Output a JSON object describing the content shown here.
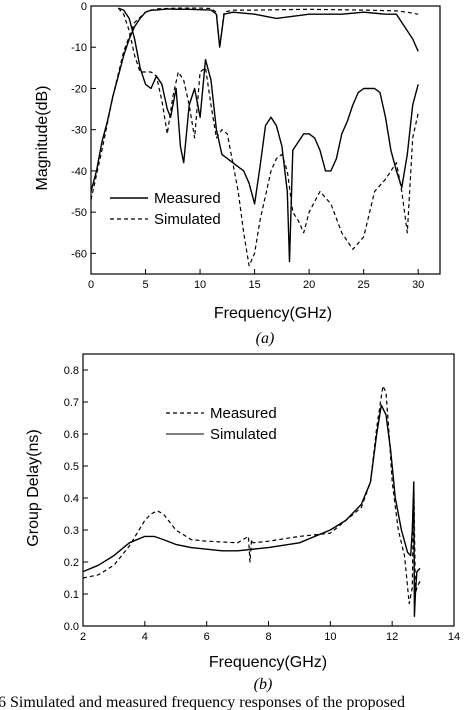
{
  "chart_data": [
    {
      "type": "line",
      "panel_label": "(a)",
      "xlabel": "Frequency(GHz)",
      "ylabel": "Magnitude(dB)",
      "xlim": [
        0,
        32
      ],
      "ylim": [
        -65,
        0
      ],
      "xticks": [
        0,
        5,
        10,
        15,
        20,
        25,
        30
      ],
      "yticks": [
        0,
        -10,
        -20,
        -30,
        -40,
        -50,
        -60
      ],
      "legend_position": "lower-left",
      "series": [
        {
          "name": "Measured",
          "style": "solid",
          "role": "S21",
          "x": [
            0,
            0.5,
            1,
            1.5,
            2,
            2.5,
            3,
            3.5,
            4,
            4.5,
            5,
            5.5,
            6,
            7,
            8,
            9,
            10,
            11,
            11.5,
            11.8,
            12.2,
            13,
            15,
            17,
            20,
            23,
            25,
            27,
            28,
            29,
            29.5,
            30
          ],
          "y": [
            -45,
            -40,
            -33,
            -28,
            -22,
            -17,
            -12,
            -8,
            -5,
            -3,
            -1.5,
            -1,
            -1,
            -0.7,
            -0.8,
            -0.8,
            -0.9,
            -1,
            -2,
            -10,
            -2,
            -1.5,
            -2,
            -3,
            -2,
            -2,
            -1.5,
            -2,
            -2,
            -6,
            -8,
            -11
          ]
        },
        {
          "name": "Measured",
          "style": "solid",
          "role": "S11",
          "x": [
            2.5,
            3,
            3.5,
            4,
            4.5,
            5,
            5.5,
            6,
            6.5,
            7,
            7.3,
            7.8,
            8.2,
            8.5,
            9,
            9.5,
            10,
            10.5,
            11,
            11.5,
            12,
            13,
            14,
            14.5,
            15,
            15.5,
            16,
            16.5,
            17,
            17.5,
            18,
            18.2,
            18.5,
            19,
            19.5,
            20,
            20.5,
            21,
            21.5,
            22,
            22.5,
            23,
            23.5,
            24,
            24.5,
            25,
            26,
            26.5,
            27,
            27.5,
            28,
            28.5,
            29,
            29.5,
            30
          ],
          "y": [
            -0.5,
            -1,
            -3,
            -8,
            -15,
            -19,
            -20,
            -17,
            -19,
            -25,
            -27,
            -20,
            -34,
            -38,
            -24,
            -20,
            -27,
            -13,
            -18,
            -30,
            -36,
            -38,
            -40,
            -43,
            -48,
            -39,
            -29,
            -27,
            -29,
            -34,
            -45,
            -62,
            -35,
            -33,
            -31,
            -31,
            -32,
            -35,
            -40,
            -40,
            -37,
            -31,
            -28,
            -24,
            -21,
            -20,
            -20,
            -21,
            -27,
            -35,
            -40,
            -44,
            -36,
            -24,
            -19
          ]
        },
        {
          "name": "Simulated",
          "style": "dashed",
          "role": "S21",
          "x": [
            0,
            1,
            2,
            3,
            4,
            5,
            6,
            8,
            10,
            11,
            11.5,
            11.8,
            12.2,
            13,
            15,
            20,
            25,
            28,
            29,
            30
          ],
          "y": [
            -47,
            -35,
            -22,
            -11,
            -4,
            -1.5,
            -0.7,
            -0.5,
            -0.5,
            -0.6,
            -1.5,
            -10,
            -1.5,
            -1,
            -1,
            -0.8,
            -1,
            -1.2,
            -1.5,
            -2
          ]
        },
        {
          "name": "Simulated",
          "style": "dashed",
          "role": "S11",
          "x": [
            2.5,
            3,
            3.5,
            4,
            4.5,
            5,
            5.5,
            6,
            6.5,
            7,
            7.5,
            8,
            8.5,
            9,
            9.5,
            10,
            10.5,
            11,
            11.5,
            12,
            12.5,
            13,
            13.5,
            14,
            14.5,
            15,
            15.5,
            16,
            16.5,
            17,
            17.5,
            18,
            18.5,
            19,
            19.5,
            20,
            21,
            22,
            23,
            24,
            25,
            26,
            27,
            28,
            28.5,
            29,
            29.5,
            30
          ],
          "y": [
            -0.5,
            -2,
            -6,
            -12,
            -16,
            -16,
            -16,
            -17,
            -23,
            -31,
            -22,
            -16,
            -18,
            -24,
            -32,
            -16,
            -15,
            -24,
            -32,
            -30,
            -31,
            -38,
            -45,
            -55,
            -63,
            -60,
            -52,
            -46,
            -40,
            -37,
            -36,
            -40,
            -50,
            -52,
            -55,
            -50,
            -45,
            -48,
            -55,
            -59,
            -56,
            -45,
            -42,
            -38,
            -45,
            -55,
            -32,
            -26
          ]
        }
      ]
    },
    {
      "type": "line",
      "panel_label": "(b)",
      "xlabel": "Frequency(GHz)",
      "ylabel": "Group Delay(ns)",
      "xlim": [
        2,
        14
      ],
      "ylim": [
        0,
        0.85
      ],
      "xticks": [
        2,
        4,
        6,
        8,
        10,
        12,
        14
      ],
      "yticks": [
        0.0,
        0.1,
        0.2,
        0.3,
        0.4,
        0.5,
        0.6,
        0.7,
        0.8
      ],
      "legend_position": "top-left",
      "series": [
        {
          "name": "Measured",
          "style": "dashed",
          "x": [
            2,
            2.5,
            3,
            3.5,
            4,
            4.2,
            4.4,
            4.6,
            5,
            5.5,
            6,
            7,
            7.35,
            7.4,
            7.45,
            7.5,
            8,
            9,
            10,
            10.5,
            11,
            11.3,
            11.5,
            11.7,
            11.8,
            11.9,
            12,
            12.2,
            12.4,
            12.55,
            12.65,
            12.7,
            12.75,
            12.8,
            12.9
          ],
          "y": [
            0.15,
            0.16,
            0.19,
            0.25,
            0.33,
            0.35,
            0.36,
            0.35,
            0.3,
            0.27,
            0.265,
            0.26,
            0.28,
            0.2,
            0.27,
            0.26,
            0.265,
            0.28,
            0.29,
            0.33,
            0.37,
            0.45,
            0.62,
            0.75,
            0.73,
            0.6,
            0.45,
            0.3,
            0.22,
            0.07,
            0.12,
            0.45,
            0.1,
            0.12,
            0.14
          ]
        },
        {
          "name": "Simulated",
          "style": "solid",
          "x": [
            2,
            2.5,
            3,
            3.5,
            4,
            4.3,
            4.6,
            5,
            5.5,
            6,
            6.5,
            7,
            8,
            9,
            10,
            10.5,
            11,
            11.3,
            11.5,
            11.65,
            11.8,
            11.95,
            12.1,
            12.3,
            12.5,
            12.6,
            12.65,
            12.7,
            12.72,
            12.75,
            12.8,
            12.9
          ],
          "y": [
            0.17,
            0.19,
            0.22,
            0.26,
            0.28,
            0.28,
            0.27,
            0.255,
            0.245,
            0.24,
            0.235,
            0.235,
            0.245,
            0.26,
            0.3,
            0.33,
            0.38,
            0.45,
            0.6,
            0.69,
            0.66,
            0.55,
            0.4,
            0.3,
            0.23,
            0.22,
            0.3,
            0.45,
            0.03,
            0.1,
            0.17,
            0.18
          ]
        }
      ]
    }
  ],
  "caption": "6  Simulated and measured frequency responses of the proposed"
}
